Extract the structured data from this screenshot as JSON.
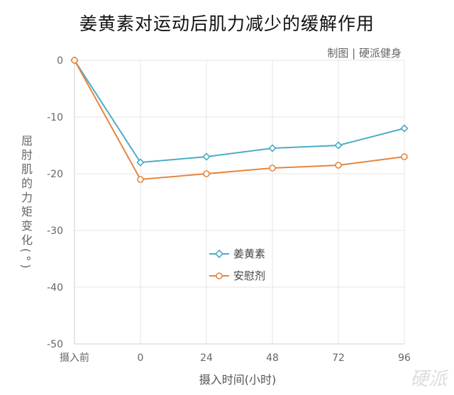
{
  "title": "姜黄素对运动后肌力减少的缓解作用",
  "credit": "制图 | 硬派健身",
  "watermark": "硬派",
  "chart_data": {
    "type": "line",
    "categories": [
      "摄入前",
      "0",
      "24",
      "48",
      "72",
      "96"
    ],
    "ylabel": "屈肘肌的力矩变化(°)",
    "xlabel": "摄入时间(小时)",
    "ylim": [
      -50,
      0
    ],
    "yticks": [
      "0",
      "-10",
      "-20",
      "-30",
      "-40",
      "-50"
    ],
    "grid": true,
    "legend_position": "center",
    "series": [
      {
        "name": "姜黄素",
        "color": "#4BACC6",
        "marker": "diamond",
        "values": [
          0,
          -18,
          -17,
          -15.5,
          -15,
          -12
        ]
      },
      {
        "name": "安慰剂",
        "color": "#E8843A",
        "marker": "circle",
        "values": [
          0,
          -21,
          -20,
          -19,
          -18.5,
          -17
        ]
      }
    ]
  }
}
